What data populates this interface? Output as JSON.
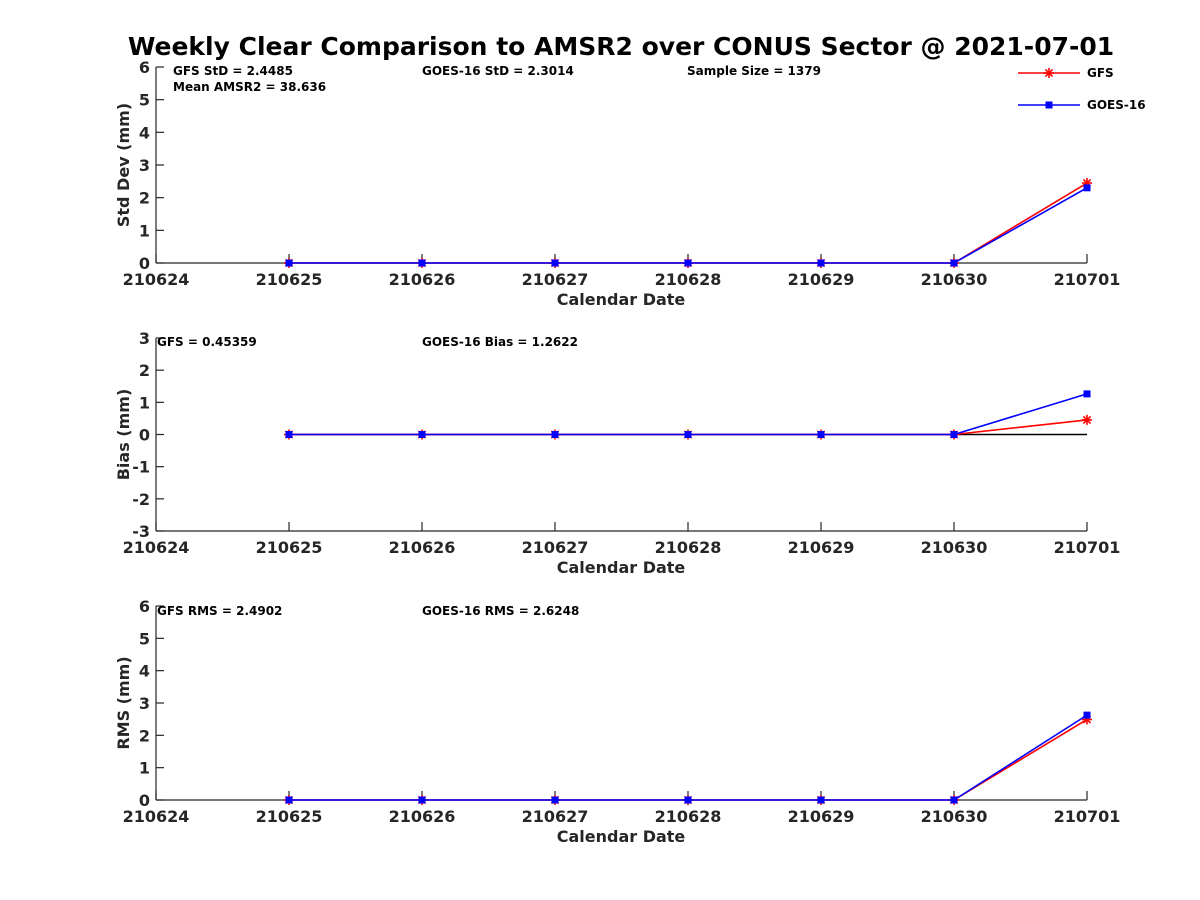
{
  "title": "Weekly Clear Comparison to AMSR2 over CONUS Sector @ 2021-07-01",
  "colors": {
    "GFS": "#ff0000",
    "GOES-16": "#0000ff",
    "zero_line": "#000000",
    "axis": "#262626"
  },
  "legend": {
    "placement": "top-right",
    "entries": [
      {
        "name": "GFS",
        "color": "#ff0000",
        "marker": "star"
      },
      {
        "name": "GOES-16",
        "color": "#0000ff",
        "marker": "square"
      }
    ]
  },
  "chart_data": [
    {
      "type": "line",
      "xlabel": "Calendar Date",
      "ylabel": "Std Dev (mm)",
      "ylim": [
        0,
        6
      ],
      "yticks": [
        "0",
        "1",
        "2",
        "3",
        "4",
        "5",
        "6"
      ],
      "xticks": [
        "210624",
        "210625",
        "210626",
        "210627",
        "210628",
        "210629",
        "210630",
        "210701"
      ],
      "x": [
        "210625",
        "210626",
        "210627",
        "210628",
        "210629",
        "210630",
        "210701"
      ],
      "series": [
        {
          "name": "GFS",
          "values": [
            0,
            0,
            0,
            0,
            0,
            0,
            2.4485
          ]
        },
        {
          "name": "GOES-16",
          "values": [
            0,
            0,
            0,
            0,
            0,
            0,
            2.3014
          ]
        }
      ],
      "zero_line": false,
      "annotations": [
        "GFS StD = 2.4485",
        "GOES-16 StD = 2.3014",
        "Sample Size = 1379",
        "Mean AMSR2 = 38.636"
      ]
    },
    {
      "type": "line",
      "xlabel": "Calendar Date",
      "ylabel": "Bias (mm)",
      "ylim": [
        -3,
        3
      ],
      "yticks": [
        "-3",
        "-2",
        "-1",
        "0",
        "1",
        "2",
        "3"
      ],
      "xticks": [
        "210624",
        "210625",
        "210626",
        "210627",
        "210628",
        "210629",
        "210630",
        "210701"
      ],
      "x": [
        "210625",
        "210626",
        "210627",
        "210628",
        "210629",
        "210630",
        "210701"
      ],
      "series": [
        {
          "name": "GFS",
          "values": [
            0,
            0,
            0,
            0,
            0,
            0,
            0.45359
          ]
        },
        {
          "name": "GOES-16",
          "values": [
            0,
            0,
            0,
            0,
            0,
            0,
            1.2622
          ]
        }
      ],
      "zero_line": true,
      "annotations": [
        "GFS = 0.45359",
        "GOES-16 Bias  = 1.2622"
      ]
    },
    {
      "type": "line",
      "xlabel": "Calendar Date",
      "ylabel": "RMS (mm)",
      "ylim": [
        0,
        6
      ],
      "yticks": [
        "0",
        "1",
        "2",
        "3",
        "4",
        "5",
        "6"
      ],
      "xticks": [
        "210624",
        "210625",
        "210626",
        "210627",
        "210628",
        "210629",
        "210630",
        "210701"
      ],
      "x": [
        "210625",
        "210626",
        "210627",
        "210628",
        "210629",
        "210630",
        "210701"
      ],
      "series": [
        {
          "name": "GFS",
          "values": [
            0,
            0,
            0,
            0,
            0,
            0,
            2.4902
          ]
        },
        {
          "name": "GOES-16",
          "values": [
            0,
            0,
            0,
            0,
            0,
            0,
            2.6248
          ]
        }
      ],
      "zero_line": false,
      "annotations": [
        "GFS RMS = 2.4902",
        "GOES-16 RMS = 2.6248"
      ]
    }
  ]
}
